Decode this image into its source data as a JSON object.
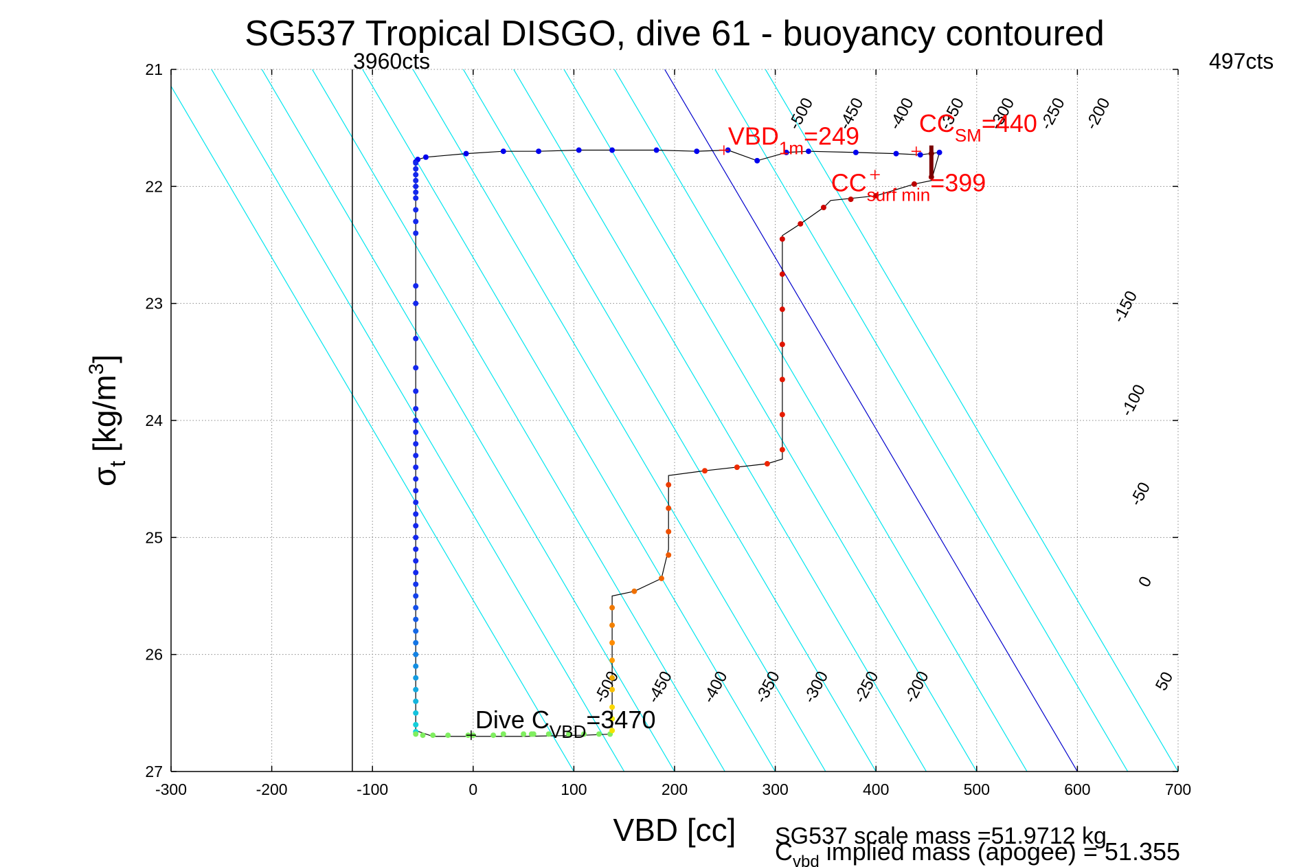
{
  "chart_data": {
    "type": "scatter",
    "title": "SG537 Tropical DISGO, dive 61 - buoyancy contoured",
    "xlabel": "VBD [cc]",
    "ylabel": {
      "main": "σ",
      "sub": "t",
      "unit": " [kg/m",
      "sup": "3",
      "close": "]"
    },
    "xlim": [
      -300,
      700
    ],
    "ylim": [
      21,
      27
    ],
    "y_reversed": true,
    "grid": true,
    "xticks": [
      "-300",
      "-200",
      "-100",
      "0",
      "100",
      "200",
      "300",
      "400",
      "500",
      "600",
      "700"
    ],
    "yticks": [
      "21",
      "22",
      "23",
      "24",
      "25",
      "26",
      "27"
    ],
    "top_labels": {
      "left": "3960cts",
      "right": "497cts"
    },
    "vertical_line_x": -120,
    "contour_values_top": [
      "-500",
      "-450",
      "-400",
      "-350",
      "-300",
      "-250",
      "-200"
    ],
    "contour_values_bottom": [
      "-500",
      "-450",
      "-400",
      "-350",
      "-300",
      "-250",
      "-200"
    ],
    "contour_values_right": [
      "-150",
      "-100",
      "-50",
      "0",
      "50"
    ],
    "contours": {
      "slope_vbd_per_sigma": 68.3,
      "intercept_at_sigma27": [
        100,
        150,
        200,
        250,
        300,
        350,
        400,
        450,
        500,
        550,
        600,
        650,
        700
      ],
      "zero_contour_intercept": 600,
      "color": "#00e5ee",
      "zero_color": "#0000cc"
    },
    "profile_path": [
      [
        -57,
        21.79
      ],
      [
        -55,
        21.77
      ],
      [
        -47,
        21.75
      ],
      [
        -7,
        21.72
      ],
      [
        30,
        21.7
      ],
      [
        65,
        21.7
      ],
      [
        105,
        21.69
      ],
      [
        138,
        21.69
      ],
      [
        182,
        21.69
      ],
      [
        222,
        21.7
      ],
      [
        253,
        21.69
      ],
      [
        282,
        21.78
      ],
      [
        311,
        21.71
      ],
      [
        333,
        21.7
      ],
      [
        380,
        21.71
      ],
      [
        420,
        21.72
      ],
      [
        444,
        21.73
      ],
      [
        463,
        21.71
      ],
      [
        455,
        21.95
      ],
      [
        438,
        21.98
      ],
      [
        400,
        22.08
      ],
      [
        355,
        22.12
      ],
      [
        348,
        22.18
      ],
      [
        325,
        22.32
      ],
      [
        307,
        22.42
      ],
      [
        307,
        24.33
      ],
      [
        292,
        24.37
      ],
      [
        230,
        24.43
      ],
      [
        194,
        24.47
      ],
      [
        194,
        25.1
      ],
      [
        187,
        25.35
      ],
      [
        160,
        25.46
      ],
      [
        138,
        25.5
      ],
      [
        138,
        26.68
      ],
      [
        110,
        26.69
      ],
      [
        50,
        26.7
      ],
      [
        0,
        26.7
      ],
      [
        -40,
        26.7
      ],
      [
        -57,
        26.65
      ],
      [
        -57,
        21.79
      ]
    ],
    "descent_points": {
      "x": [
        -57,
        -55,
        -47,
        -7,
        30,
        65,
        105,
        138,
        182,
        222,
        253,
        282,
        311,
        333,
        380,
        420,
        444,
        463
      ],
      "y": [
        21.79,
        21.77,
        21.75,
        21.72,
        21.7,
        21.7,
        21.69,
        21.69,
        21.69,
        21.7,
        21.69,
        21.78,
        21.71,
        21.7,
        21.71,
        21.72,
        21.73,
        21.71
      ],
      "color": "#0000ee"
    },
    "left_leg": {
      "x": -57,
      "y": [
        21.8,
        21.85,
        21.9,
        21.95,
        22.0,
        22.05,
        22.1,
        22.2,
        22.3,
        22.4,
        22.85,
        23.0,
        23.3,
        23.55,
        23.75,
        23.9,
        24.0,
        24.1,
        24.2,
        24.3,
        24.4,
        24.5,
        24.6,
        24.7,
        24.8,
        24.9,
        25.0,
        25.1,
        25.2,
        25.3,
        25.4,
        25.5,
        25.6,
        25.7,
        25.8,
        25.9,
        26.0,
        26.1,
        26.2,
        26.3,
        26.4,
        26.5,
        26.6,
        26.66
      ]
    },
    "bottom_points": {
      "x": [
        -57,
        -50,
        -40,
        -25,
        -5,
        0,
        20,
        30,
        50,
        58,
        60,
        75,
        95,
        110,
        125,
        136
      ],
      "y": [
        26.68,
        26.69,
        26.69,
        26.69,
        26.69,
        26.69,
        26.69,
        26.68,
        26.68,
        26.68,
        26.68,
        26.68,
        26.68,
        26.68,
        26.68,
        26.68
      ],
      "color": "#80ee60"
    },
    "climb_points": [
      {
        "x": 138,
        "y": 26.65,
        "color": "#f2e200"
      },
      {
        "x": 138,
        "y": 26.55,
        "color": "#f6f000"
      },
      {
        "x": 138,
        "y": 26.45,
        "color": "#fbd800"
      },
      {
        "x": 138,
        "y": 26.3,
        "color": "#f7c000"
      },
      {
        "x": 138,
        "y": 26.2,
        "color": "#f0aa00"
      },
      {
        "x": 138,
        "y": 26.05,
        "color": "#ff9a00"
      },
      {
        "x": 138,
        "y": 25.9,
        "color": "#ff8c00"
      },
      {
        "x": 138,
        "y": 25.75,
        "color": "#f28000"
      },
      {
        "x": 138,
        "y": 25.6,
        "color": "#f07800"
      },
      {
        "x": 160,
        "y": 25.46,
        "color": "#f07000"
      },
      {
        "x": 187,
        "y": 25.35,
        "color": "#f06400"
      },
      {
        "x": 194,
        "y": 25.15,
        "color": "#ef5a00"
      },
      {
        "x": 194,
        "y": 24.95,
        "color": "#ef5000"
      },
      {
        "x": 194,
        "y": 24.75,
        "color": "#ee4800"
      },
      {
        "x": 194,
        "y": 24.55,
        "color": "#ee3c00"
      },
      {
        "x": 230,
        "y": 24.43,
        "color": "#ee3000"
      },
      {
        "x": 262,
        "y": 24.4,
        "color": "#ee2a00"
      },
      {
        "x": 292,
        "y": 24.37,
        "color": "#ee2400"
      },
      {
        "x": 307,
        "y": 24.25,
        "color": "#ec2000"
      },
      {
        "x": 307,
        "y": 23.95,
        "color": "#e81c00"
      },
      {
        "x": 307,
        "y": 23.65,
        "color": "#e41800"
      },
      {
        "x": 307,
        "y": 23.35,
        "color": "#e01400"
      },
      {
        "x": 307,
        "y": 23.05,
        "color": "#dc1000"
      },
      {
        "x": 307,
        "y": 22.75,
        "color": "#d80c00"
      },
      {
        "x": 307,
        "y": 22.45,
        "color": "#d40800"
      },
      {
        "x": 325,
        "y": 22.32,
        "color": "#d00800"
      },
      {
        "x": 348,
        "y": 22.18,
        "color": "#cc0400"
      },
      {
        "x": 375,
        "y": 22.11,
        "color": "#c80400"
      },
      {
        "x": 400,
        "y": 22.08,
        "color": "#c40000"
      },
      {
        "x": 438,
        "y": 21.98,
        "color": "#bb0000"
      },
      {
        "x": 455,
        "y": 21.92,
        "color": "#b00000"
      },
      {
        "x": 455,
        "y": 21.72,
        "color": "#7a0000"
      }
    ],
    "markers": [
      {
        "x": 249,
        "y": 21.69,
        "label": "VBD",
        "sub": "1m",
        "value": "=249",
        "color": "#ff0000"
      },
      {
        "x": 440,
        "y": 21.7,
        "label": "CC",
        "sub": "SM",
        "value": "=440",
        "color": "#ff0000"
      },
      {
        "x": 399,
        "y": 21.9,
        "label": "CC",
        "sub": "surf min",
        "value": "=399",
        "color": "#ff0000"
      },
      {
        "x": -2,
        "y": 26.69,
        "label": "Dive C",
        "sub": "VBD",
        "value": "=3470",
        "color": "#000000"
      }
    ],
    "footer": {
      "line1": "SG537 scale mass =51.9712 kg",
      "line2_main": "C",
      "line2_sub": "vbd",
      "line2_rest": " implied mass (apogee) = 51.355"
    }
  }
}
